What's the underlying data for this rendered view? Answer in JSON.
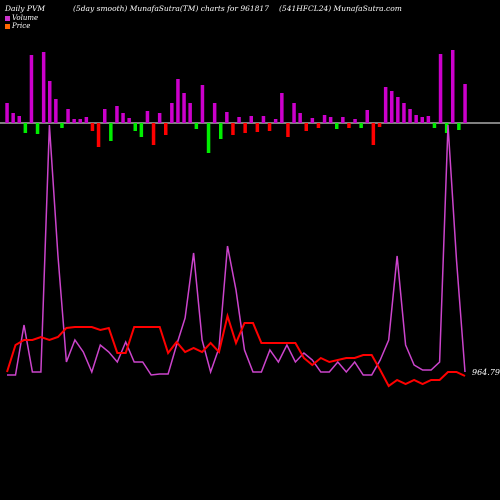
{
  "header": {
    "left": "Daily PVM",
    "smooth": "(5day smooth) MunafaSutra(TM) charts for 961817",
    "symbol": "(541HFCL24) MunafaSutra.com"
  },
  "legend": {
    "volume_label": "Volume",
    "price_label": "Price",
    "volume_color": "#cc33cc",
    "price_color": "#ff6600"
  },
  "price_readout": "964.79",
  "colors": {
    "background": "#000000",
    "baseline": "#ffffff",
    "up_bar": "#cc00cc",
    "down_bar": "#ff0000",
    "green_bar": "#00ee00",
    "price_line": "#ff0000",
    "volume_line": "#cc44cc"
  },
  "chart_data": {
    "type": "line",
    "volume_bars": [
      {
        "dir": "up",
        "v": 20
      },
      {
        "dir": "up",
        "v": 10
      },
      {
        "dir": "up",
        "v": 7
      },
      {
        "dir": "green",
        "v": 10
      },
      {
        "dir": "up",
        "v": 68
      },
      {
        "dir": "green",
        "v": 11
      },
      {
        "dir": "up",
        "v": 71
      },
      {
        "dir": "up",
        "v": 42
      },
      {
        "dir": "up",
        "v": 24
      },
      {
        "dir": "green",
        "v": 5
      },
      {
        "dir": "up",
        "v": 14
      },
      {
        "dir": "up",
        "v": 4
      },
      {
        "dir": "up",
        "v": 4
      },
      {
        "dir": "up",
        "v": 6
      },
      {
        "dir": "down",
        "v": 8
      },
      {
        "dir": "down",
        "v": 24
      },
      {
        "dir": "up",
        "v": 14
      },
      {
        "dir": "green",
        "v": 18
      },
      {
        "dir": "up",
        "v": 17
      },
      {
        "dir": "up",
        "v": 10
      },
      {
        "dir": "up",
        "v": 5
      },
      {
        "dir": "green",
        "v": 8
      },
      {
        "dir": "green",
        "v": 14
      },
      {
        "dir": "up",
        "v": 12
      },
      {
        "dir": "down",
        "v": 22
      },
      {
        "dir": "up",
        "v": 10
      },
      {
        "dir": "down",
        "v": 12
      },
      {
        "dir": "up",
        "v": 20
      },
      {
        "dir": "up",
        "v": 44
      },
      {
        "dir": "up",
        "v": 30
      },
      {
        "dir": "up",
        "v": 20
      },
      {
        "dir": "green",
        "v": 6
      },
      {
        "dir": "up",
        "v": 38
      },
      {
        "dir": "green",
        "v": 30
      },
      {
        "dir": "up",
        "v": 20
      },
      {
        "dir": "green",
        "v": 16
      },
      {
        "dir": "up",
        "v": 11
      },
      {
        "dir": "down",
        "v": 12
      },
      {
        "dir": "up",
        "v": 6
      },
      {
        "dir": "down",
        "v": 10
      },
      {
        "dir": "up",
        "v": 7
      },
      {
        "dir": "down",
        "v": 9
      },
      {
        "dir": "up",
        "v": 7
      },
      {
        "dir": "down",
        "v": 8
      },
      {
        "dir": "up",
        "v": 4
      },
      {
        "dir": "up",
        "v": 30
      },
      {
        "dir": "down",
        "v": 14
      },
      {
        "dir": "up",
        "v": 20
      },
      {
        "dir": "up",
        "v": 10
      },
      {
        "dir": "down",
        "v": 8
      },
      {
        "dir": "up",
        "v": 5
      },
      {
        "dir": "down",
        "v": 5
      },
      {
        "dir": "up",
        "v": 8
      },
      {
        "dir": "up",
        "v": 6
      },
      {
        "dir": "green",
        "v": 6
      },
      {
        "dir": "up",
        "v": 6
      },
      {
        "dir": "down",
        "v": 5
      },
      {
        "dir": "up",
        "v": 4
      },
      {
        "dir": "green",
        "v": 5
      },
      {
        "dir": "up",
        "v": 13
      },
      {
        "dir": "down",
        "v": 22
      },
      {
        "dir": "down",
        "v": 4
      },
      {
        "dir": "up",
        "v": 36
      },
      {
        "dir": "up",
        "v": 32
      },
      {
        "dir": "up",
        "v": 26
      },
      {
        "dir": "up",
        "v": 20
      },
      {
        "dir": "up",
        "v": 14
      },
      {
        "dir": "up",
        "v": 8
      },
      {
        "dir": "up",
        "v": 6
      },
      {
        "dir": "up",
        "v": 7
      },
      {
        "dir": "green",
        "v": 5
      },
      {
        "dir": "up",
        "v": 69
      },
      {
        "dir": "green",
        "v": 10
      },
      {
        "dir": "up",
        "v": 73
      },
      {
        "dir": "green",
        "v": 7
      },
      {
        "dir": "up",
        "v": 39
      }
    ],
    "price_series": [
      {
        "x": 0,
        "y": 372
      },
      {
        "x": 1,
        "y": 345
      },
      {
        "x": 2,
        "y": 340
      },
      {
        "x": 3,
        "y": 340
      },
      {
        "x": 4,
        "y": 337
      },
      {
        "x": 5,
        "y": 340
      },
      {
        "x": 6,
        "y": 337
      },
      {
        "x": 7,
        "y": 328
      },
      {
        "x": 8,
        "y": 327
      },
      {
        "x": 9,
        "y": 327
      },
      {
        "x": 10,
        "y": 327
      },
      {
        "x": 11,
        "y": 330
      },
      {
        "x": 12,
        "y": 328
      },
      {
        "x": 13,
        "y": 353
      },
      {
        "x": 14,
        "y": 353
      },
      {
        "x": 15,
        "y": 327
      },
      {
        "x": 16,
        "y": 327
      },
      {
        "x": 17,
        "y": 327
      },
      {
        "x": 18,
        "y": 327
      },
      {
        "x": 19,
        "y": 353
      },
      {
        "x": 20,
        "y": 342
      },
      {
        "x": 21,
        "y": 352
      },
      {
        "x": 22,
        "y": 348
      },
      {
        "x": 23,
        "y": 352
      },
      {
        "x": 24,
        "y": 343
      },
      {
        "x": 25,
        "y": 352
      },
      {
        "x": 26,
        "y": 316
      },
      {
        "x": 27,
        "y": 343
      },
      {
        "x": 28,
        "y": 323
      },
      {
        "x": 29,
        "y": 323
      },
      {
        "x": 30,
        "y": 343
      },
      {
        "x": 31,
        "y": 343
      },
      {
        "x": 32,
        "y": 343
      },
      {
        "x": 33,
        "y": 343
      },
      {
        "x": 34,
        "y": 343
      },
      {
        "x": 35,
        "y": 358
      },
      {
        "x": 36,
        "y": 365
      },
      {
        "x": 37,
        "y": 358
      },
      {
        "x": 38,
        "y": 362
      },
      {
        "x": 39,
        "y": 360
      },
      {
        "x": 40,
        "y": 358
      },
      {
        "x": 41,
        "y": 358
      },
      {
        "x": 42,
        "y": 355
      },
      {
        "x": 43,
        "y": 355
      },
      {
        "x": 44,
        "y": 370
      },
      {
        "x": 45,
        "y": 386
      },
      {
        "x": 46,
        "y": 380
      },
      {
        "x": 47,
        "y": 384
      },
      {
        "x": 48,
        "y": 380
      },
      {
        "x": 49,
        "y": 384
      },
      {
        "x": 50,
        "y": 380
      },
      {
        "x": 51,
        "y": 380
      },
      {
        "x": 52,
        "y": 372
      },
      {
        "x": 53,
        "y": 372
      },
      {
        "x": 54,
        "y": 376
      }
    ],
    "volume_series": [
      {
        "x": 0,
        "y": 375
      },
      {
        "x": 1,
        "y": 375
      },
      {
        "x": 2,
        "y": 325
      },
      {
        "x": 3,
        "y": 372
      },
      {
        "x": 4,
        "y": 372
      },
      {
        "x": 5,
        "y": 125
      },
      {
        "x": 6,
        "y": 255
      },
      {
        "x": 7,
        "y": 362
      },
      {
        "x": 8,
        "y": 340
      },
      {
        "x": 9,
        "y": 352
      },
      {
        "x": 10,
        "y": 372
      },
      {
        "x": 11,
        "y": 345
      },
      {
        "x": 12,
        "y": 352
      },
      {
        "x": 13,
        "y": 362
      },
      {
        "x": 14,
        "y": 342
      },
      {
        "x": 15,
        "y": 362
      },
      {
        "x": 16,
        "y": 362
      },
      {
        "x": 17,
        "y": 375
      },
      {
        "x": 18,
        "y": 374
      },
      {
        "x": 19,
        "y": 374
      },
      {
        "x": 20,
        "y": 345
      },
      {
        "x": 21,
        "y": 318
      },
      {
        "x": 22,
        "y": 253
      },
      {
        "x": 23,
        "y": 340
      },
      {
        "x": 24,
        "y": 372
      },
      {
        "x": 25,
        "y": 348
      },
      {
        "x": 26,
        "y": 246
      },
      {
        "x": 27,
        "y": 290
      },
      {
        "x": 28,
        "y": 350
      },
      {
        "x": 29,
        "y": 372
      },
      {
        "x": 30,
        "y": 372
      },
      {
        "x": 31,
        "y": 350
      },
      {
        "x": 32,
        "y": 362
      },
      {
        "x": 33,
        "y": 345
      },
      {
        "x": 34,
        "y": 362
      },
      {
        "x": 35,
        "y": 353
      },
      {
        "x": 36,
        "y": 360
      },
      {
        "x": 37,
        "y": 372
      },
      {
        "x": 38,
        "y": 372
      },
      {
        "x": 39,
        "y": 362
      },
      {
        "x": 40,
        "y": 372
      },
      {
        "x": 41,
        "y": 362
      },
      {
        "x": 42,
        "y": 375
      },
      {
        "x": 43,
        "y": 375
      },
      {
        "x": 44,
        "y": 360
      },
      {
        "x": 45,
        "y": 340
      },
      {
        "x": 46,
        "y": 256
      },
      {
        "x": 47,
        "y": 345
      },
      {
        "x": 48,
        "y": 365
      },
      {
        "x": 49,
        "y": 370
      },
      {
        "x": 50,
        "y": 370
      },
      {
        "x": 51,
        "y": 362
      },
      {
        "x": 52,
        "y": 125
      },
      {
        "x": 53,
        "y": 260
      },
      {
        "x": 54,
        "y": 372
      }
    ]
  }
}
